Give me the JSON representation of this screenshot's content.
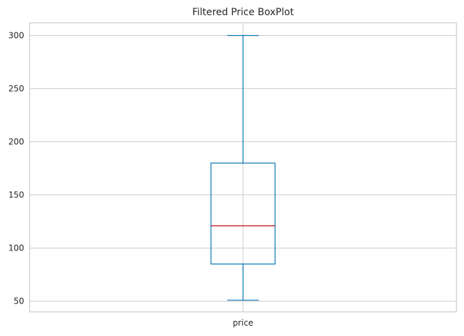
{
  "chart_data": {
    "type": "box",
    "title": "Filtered Price BoxPlot",
    "xlabel": "",
    "ylabel": "",
    "categories": [
      "price"
    ],
    "boxes": [
      {
        "category": "price",
        "whisker_low": 51,
        "q1": 85,
        "median": 121,
        "q3": 180,
        "whisker_high": 300
      }
    ],
    "ylim": [
      40,
      312
    ],
    "yticks": [
      50,
      100,
      150,
      200,
      250,
      300
    ],
    "grid": true,
    "colors": {
      "box": "#0072B2",
      "median": "#C00000",
      "grid": "#cccccc"
    }
  }
}
